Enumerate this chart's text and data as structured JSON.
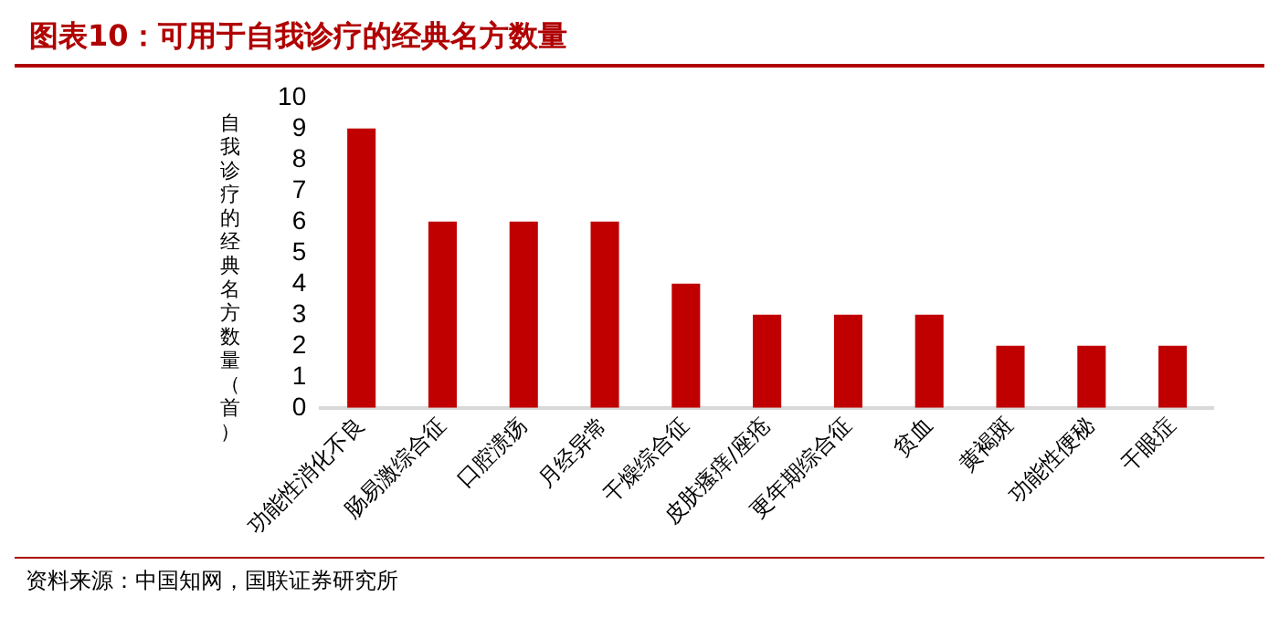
{
  "chart_data": {
    "type": "bar",
    "title": "图表10：可用于自我诊疗的经典名方数量",
    "ylabel": "自我诊疗的经典名方数量（首）",
    "categories": [
      "功能性消化不良",
      "肠易激综合征",
      "口腔溃疡",
      "月经异常",
      "干燥综合征",
      "皮肤瘙痒/座疮",
      "更年期综合征",
      "贫血",
      "黄褐斑",
      "功能性便秘",
      "干眼症"
    ],
    "values": [
      9,
      6,
      6,
      6,
      4,
      3,
      3,
      3,
      2,
      2,
      2
    ],
    "color": "#c00000",
    "ylim": [
      0,
      10
    ],
    "yticks": [
      0,
      1,
      2,
      3,
      4,
      5,
      6,
      7,
      8,
      9,
      10
    ],
    "grid": false,
    "legend": false,
    "annotations": [
      "资料来源：中国知网，国联证券研究所"
    ]
  }
}
